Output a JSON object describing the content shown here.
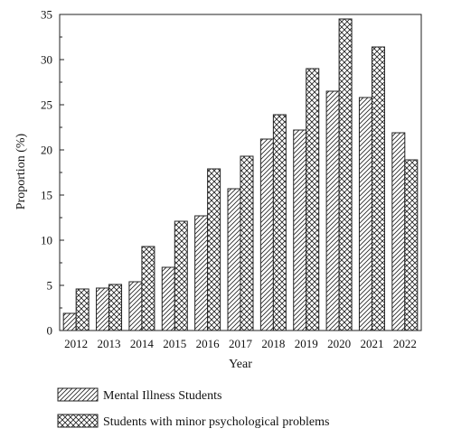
{
  "chart_data": {
    "type": "bar",
    "title": "",
    "xlabel": "Year",
    "ylabel": "Proportion (%)",
    "ylim": [
      0,
      35
    ],
    "yticks": [
      0,
      5,
      10,
      15,
      20,
      25,
      30,
      35
    ],
    "grid": false,
    "legend_position": "bottom",
    "categories": [
      "2012",
      "2013",
      "2014",
      "2015",
      "2016",
      "2017",
      "2018",
      "2019",
      "2020",
      "2021",
      "2022"
    ],
    "series": [
      {
        "name": "Mental Illness Students",
        "pattern": "diagonal-hatch",
        "values": [
          1.9,
          4.7,
          5.4,
          7.0,
          12.7,
          15.7,
          21.2,
          22.2,
          26.5,
          25.8,
          21.9
        ]
      },
      {
        "name": "Students with minor psychological problems",
        "pattern": "cross-hatch",
        "values": [
          4.6,
          5.1,
          9.3,
          12.1,
          17.9,
          19.3,
          23.9,
          29.0,
          34.5,
          31.4,
          18.9
        ]
      }
    ],
    "colors": {
      "axis": "#222222",
      "bar_fill": "#ffffff",
      "hatch": "#222222"
    }
  }
}
